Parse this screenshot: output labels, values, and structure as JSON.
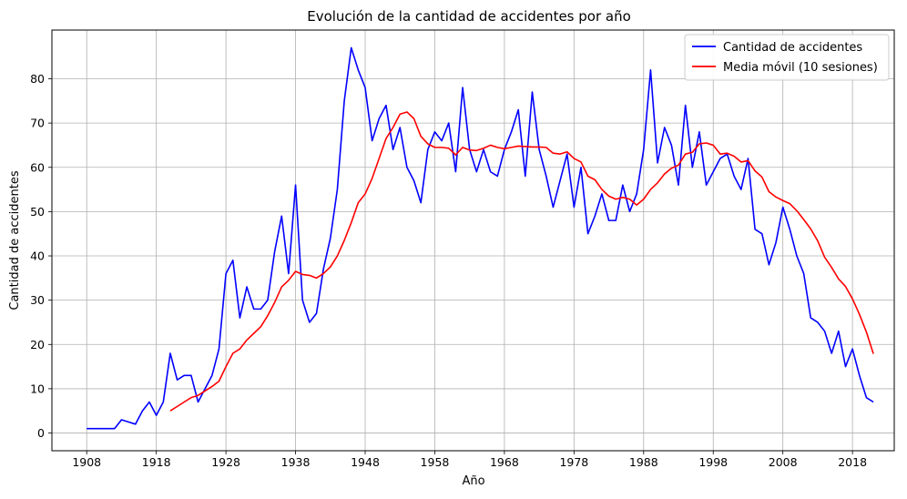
{
  "chart_data": {
    "type": "line",
    "title": "Evolución de la cantidad de accidentes por año",
    "xlabel": "Año",
    "ylabel": "Cantidad de accidentes",
    "xlim": [
      1903,
      2024
    ],
    "ylim": [
      -4,
      91
    ],
    "xticks": [
      1908,
      1918,
      1928,
      1938,
      1948,
      1958,
      1968,
      1978,
      1988,
      1998,
      2008,
      2018
    ],
    "yticks": [
      0,
      10,
      20,
      30,
      40,
      50,
      60,
      70,
      80
    ],
    "grid": true,
    "legend_position": "top-right",
    "series": [
      {
        "name": "Cantidad de accidentes",
        "color": "#0000ff",
        "x": [
          1908,
          1909,
          1910,
          1911,
          1912,
          1913,
          1914,
          1915,
          1916,
          1917,
          1918,
          1919,
          1920,
          1921,
          1922,
          1923,
          1924,
          1925,
          1926,
          1927,
          1928,
          1929,
          1930,
          1931,
          1932,
          1933,
          1934,
          1935,
          1936,
          1937,
          1938,
          1939,
          1940,
          1941,
          1942,
          1943,
          1944,
          1945,
          1946,
          1947,
          1948,
          1949,
          1950,
          1951,
          1952,
          1953,
          1954,
          1955,
          1956,
          1957,
          1958,
          1959,
          1960,
          1961,
          1962,
          1963,
          1964,
          1965,
          1966,
          1967,
          1968,
          1969,
          1970,
          1971,
          1972,
          1973,
          1974,
          1975,
          1976,
          1977,
          1978,
          1979,
          1980,
          1981,
          1982,
          1983,
          1984,
          1985,
          1986,
          1987,
          1988,
          1989,
          1990,
          1991,
          1992,
          1993,
          1994,
          1995,
          1996,
          1997,
          1998,
          1999,
          2000,
          2001,
          2002,
          2003,
          2004,
          2005,
          2006,
          2007,
          2008,
          2009,
          2010,
          2011,
          2012,
          2013,
          2014,
          2015,
          2016,
          2017,
          2018,
          2019,
          2020,
          2021
        ],
        "y": [
          1,
          1,
          1,
          1,
          1,
          3,
          2.5,
          2,
          5,
          7,
          4,
          7,
          18,
          12,
          13,
          13,
          7,
          10,
          13,
          19,
          36,
          39,
          26,
          33,
          28,
          28,
          30,
          41,
          49,
          36,
          56,
          30,
          25,
          27,
          37,
          44,
          55,
          75,
          87,
          82,
          78,
          66,
          71,
          74,
          64,
          69,
          60,
          57,
          52,
          64,
          68,
          66,
          70,
          59,
          78,
          64,
          59,
          64,
          59,
          58,
          64,
          68,
          73,
          58,
          77,
          64,
          58,
          51,
          57,
          63,
          51,
          60,
          45,
          49,
          54,
          48,
          48,
          56,
          50,
          54,
          64,
          82,
          61,
          69,
          65,
          56,
          74,
          60,
          68,
          56,
          59,
          62,
          63,
          58,
          55,
          62,
          46,
          45,
          38,
          43,
          51,
          46,
          40,
          36,
          26,
          25,
          23,
          18,
          23,
          15,
          19,
          13,
          8,
          7
        ]
      },
      {
        "name": "Media móvil (10 sesiones)",
        "color": "#ff0000",
        "x": [
          1920,
          1921,
          1922,
          1923,
          1924,
          1925,
          1926,
          1927,
          1928,
          1929,
          1930,
          1931,
          1932,
          1933,
          1934,
          1935,
          1936,
          1937,
          1938,
          1939,
          1940,
          1941,
          1942,
          1943,
          1944,
          1945,
          1946,
          1947,
          1948,
          1949,
          1950,
          1951,
          1952,
          1953,
          1954,
          1955,
          1956,
          1957,
          1958,
          1959,
          1960,
          1961,
          1962,
          1963,
          1964,
          1965,
          1966,
          1967,
          1968,
          1969,
          1970,
          1971,
          1972,
          1973,
          1974,
          1975,
          1976,
          1977,
          1978,
          1979,
          1980,
          1981,
          1982,
          1983,
          1984,
          1985,
          1986,
          1987,
          1988,
          1989,
          1990,
          1991,
          1992,
          1993,
          1994,
          1995,
          1996,
          1997,
          1998,
          1999,
          2000,
          2001,
          2002,
          2003,
          2004,
          2005,
          2006,
          2007,
          2008,
          2009,
          2010,
          2011,
          2012,
          2013,
          2014,
          2015,
          2016,
          2017,
          2018,
          2019,
          2020,
          2021
        ],
        "y": [
          5,
          6,
          7,
          8,
          8.5,
          9.5,
          10.5,
          11.7,
          15,
          18,
          19,
          21,
          22.5,
          24,
          26.5,
          29.5,
          33,
          34.5,
          36.5,
          35.8,
          35.6,
          35,
          36,
          37.5,
          40,
          43.5,
          47.5,
          52,
          54,
          57.5,
          62,
          66.5,
          69,
          72,
          72.5,
          71,
          67,
          65.3,
          64.5,
          64.5,
          64.3,
          62.8,
          64.5,
          63.9,
          63.8,
          64.3,
          65,
          64.5,
          64.2,
          64.5,
          64.8,
          64.7,
          64.6,
          64.6,
          64.5,
          63.2,
          63,
          63.5,
          62,
          61.2,
          58,
          57.2,
          55,
          53.5,
          52.8,
          53.2,
          52.8,
          51.5,
          52.8,
          55,
          56.5,
          58.5,
          59.8,
          60.5,
          63,
          63.4,
          65.3,
          65.5,
          65,
          63,
          63.2,
          62.5,
          61.2,
          61.5,
          59.2,
          57.8,
          54.5,
          53.3,
          52.5,
          51.8,
          50.2,
          48.2,
          46.1,
          43.4,
          39.7,
          37.4,
          34.8,
          33.1,
          30.3,
          26.8,
          22.8,
          17.9
        ]
      }
    ]
  }
}
